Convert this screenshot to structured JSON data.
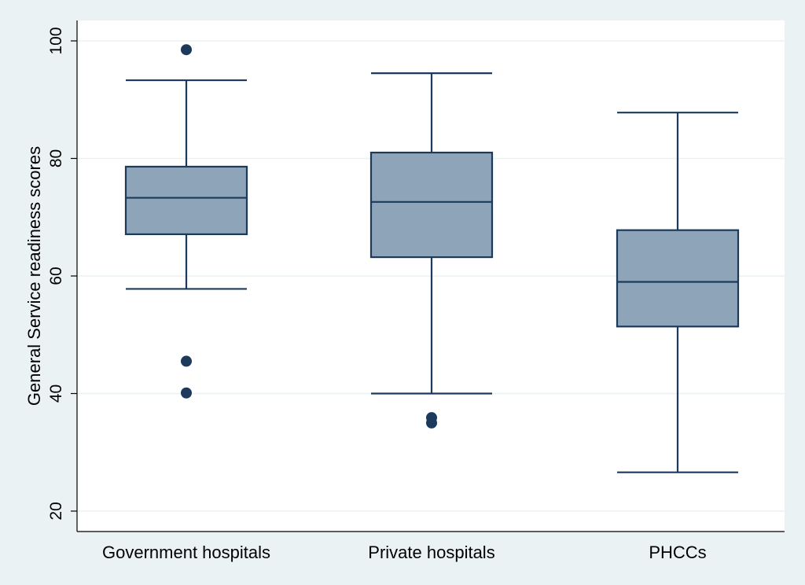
{
  "chart_data": {
    "type": "box",
    "title": "",
    "xlabel": "",
    "ylabel": "General Service readiness scores",
    "ylim": [
      18,
      103
    ],
    "yticks": [
      20,
      40,
      60,
      80,
      100
    ],
    "grid": true,
    "categories": [
      "Government hospitals",
      "Private hospitals",
      "PHCCs"
    ],
    "boxes": [
      {
        "name": "Government hospitals",
        "whisker_low": 57.8,
        "q1": 67.1,
        "median": 73.3,
        "q3": 78.6,
        "whisker_high": 93.3,
        "outliers": [
          98.5,
          45.5,
          40.1
        ]
      },
      {
        "name": "Private hospitals",
        "whisker_low": 40.0,
        "q1": 63.2,
        "median": 72.6,
        "q3": 81.0,
        "whisker_high": 94.5,
        "outliers": [
          35.9,
          35.0
        ]
      },
      {
        "name": "PHCCs",
        "whisker_low": 26.6,
        "q1": 51.4,
        "median": 59.0,
        "q3": 67.8,
        "whisker_high": 87.8,
        "outliers": []
      }
    ],
    "colors": {
      "box_fill": "#8ea4b8",
      "box_stroke": "#1b3a5c",
      "outlier": "#1b3a5c",
      "background": "#eaf2f3",
      "plot_bg": "#ffffff",
      "grid": "#eaf2f3"
    }
  }
}
